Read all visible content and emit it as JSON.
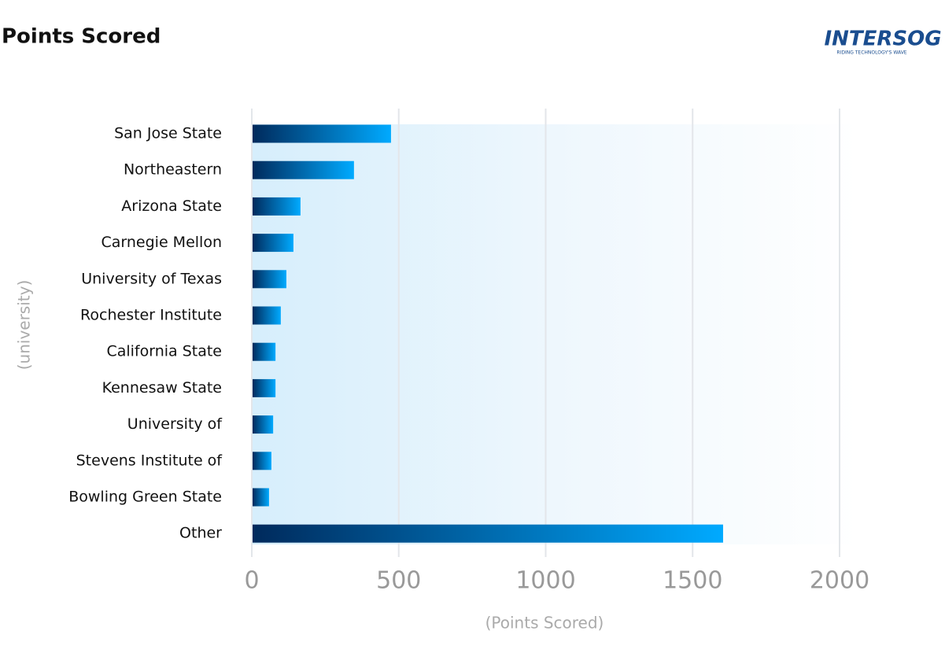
{
  "chart_data": {
    "type": "bar",
    "orientation": "horizontal",
    "title": "Points Scored",
    "logo": {
      "name": "INTERSOG",
      "tagline": "RIDING TECHNOLOGY'S WAVE"
    },
    "x_label": "(Points Scored)",
    "y_label": "(university)",
    "categories": [
      "San Jose State",
      "Northeastern",
      "Arizona State",
      "Carnegie Mellon",
      "University of Texas",
      "Rochester Institute",
      "California State",
      "Kennesaw State",
      "University of",
      "Stevens Institute of",
      "Bowling Green State",
      "Other"
    ],
    "values": [
      471,
      345,
      163,
      139,
      115,
      96,
      78,
      78,
      70,
      64,
      56,
      1601
    ],
    "colors": [
      "#002a5c",
      "#00aaff"
    ],
    "xlim": [
      0,
      2000
    ],
    "xticks": [
      0,
      500,
      1000,
      1500,
      2000
    ],
    "grid": true
  }
}
